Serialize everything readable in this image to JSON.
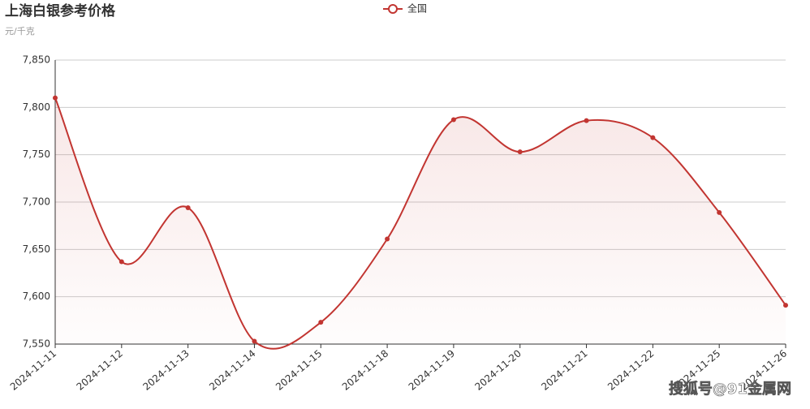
{
  "chart_data": {
    "type": "line",
    "title": "上海白银参考价格",
    "subtitle": "元/千克",
    "watermark": "搜狐号@91金属网",
    "categories": [
      "2024-11-11",
      "2024-11-12",
      "2024-11-13",
      "2024-11-14",
      "2024-11-15",
      "2024-11-18",
      "2024-11-19",
      "2024-11-20",
      "2024-11-21",
      "2024-11-22",
      "2024-11-25",
      "2024-11-26"
    ],
    "series": [
      {
        "name": "全国",
        "color": "#c23531",
        "values": [
          7810,
          7637,
          7694,
          7553,
          7573,
          7661,
          7787,
          7753,
          7786,
          7768,
          7689,
          7591
        ]
      }
    ],
    "ylim": [
      7550,
      7850
    ],
    "yticks": [
      {
        "value": 7550,
        "label": "7,550"
      },
      {
        "value": 7600,
        "label": "7,600"
      },
      {
        "value": 7650,
        "label": "7,650"
      },
      {
        "value": 7700,
        "label": "7,700"
      },
      {
        "value": 7750,
        "label": "7,750"
      },
      {
        "value": 7800,
        "label": "7,800"
      },
      {
        "value": 7850,
        "label": "7,850"
      }
    ],
    "grid": true,
    "smooth": true,
    "area": true,
    "legend": "top"
  }
}
